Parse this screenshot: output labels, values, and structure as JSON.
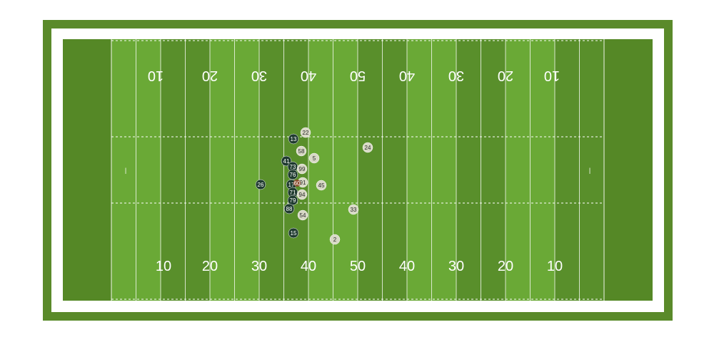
{
  "field": {
    "colors": {
      "outer_border": "#5a8a2a",
      "sideline_white": "#ffffff",
      "endzone": "#558826",
      "stripe_light": "#6aa936",
      "stripe_dark": "#598f2b",
      "lines": "#ffffff"
    },
    "yard_numbers_bottom": [
      "10",
      "20",
      "30",
      "40",
      "50",
      "40",
      "30",
      "20",
      "10"
    ],
    "yard_numbers_top": [
      "10",
      "20",
      "30",
      "40",
      "50",
      "40",
      "30",
      "20",
      "10"
    ],
    "hash_marks": [
      "|",
      "|"
    ]
  },
  "teams": {
    "dark": {
      "fill": "#1f3b2f",
      "text": "#ffffff"
    },
    "light": {
      "fill": "#d8d9c6",
      "text": "#2a2a2a"
    },
    "ball": {
      "fill": "#8a4a2a"
    }
  },
  "players": {
    "dark": [
      "13",
      "41",
      "73",
      "76",
      "17",
      "71",
      "79",
      "88",
      "26",
      "15"
    ],
    "light": [
      "22",
      "58",
      "5",
      "99",
      "91",
      "94",
      "45",
      "54",
      "33",
      "24",
      "2"
    ]
  },
  "ball_label": "60"
}
